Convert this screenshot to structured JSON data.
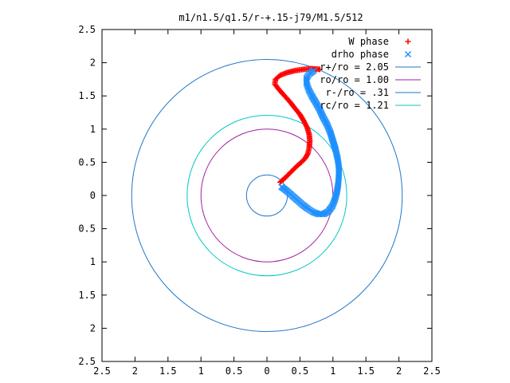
{
  "chart_data": {
    "type": "scatter",
    "title": "m1/n1.5/q1.5/r-+.15-j79/M1.5/512",
    "xlim": [
      -2.5,
      2.5
    ],
    "ylim": [
      -2.5,
      2.5
    ],
    "x_ticks": [
      "2.5",
      "2",
      "1.5",
      "1",
      "0.5",
      "0",
      "0.5",
      "1",
      "1.5",
      "2",
      "2.5"
    ],
    "y_ticks": [
      "2.5",
      "2",
      "1.5",
      "1",
      "0.5",
      "0",
      "0.5",
      "1",
      "1.5",
      "2",
      "2.5"
    ],
    "grid": false,
    "legend_position": "top-right",
    "series": [
      {
        "name": "W phase",
        "kind": "points",
        "marker": "plus",
        "color": "#ff0000",
        "points": [
          [
            0.2,
            0.2
          ],
          [
            0.28,
            0.27
          ],
          [
            0.36,
            0.35
          ],
          [
            0.44,
            0.43
          ],
          [
            0.52,
            0.5
          ],
          [
            0.58,
            0.56
          ],
          [
            0.62,
            0.63
          ],
          [
            0.64,
            0.72
          ],
          [
            0.65,
            0.82
          ],
          [
            0.64,
            0.92
          ],
          [
            0.61,
            1.02
          ],
          [
            0.56,
            1.12
          ],
          [
            0.5,
            1.22
          ],
          [
            0.42,
            1.32
          ],
          [
            0.34,
            1.42
          ],
          [
            0.25,
            1.52
          ],
          [
            0.17,
            1.61
          ],
          [
            0.12,
            1.68
          ],
          [
            0.13,
            1.75
          ],
          [
            0.2,
            1.81
          ],
          [
            0.3,
            1.85
          ],
          [
            0.42,
            1.88
          ],
          [
            0.55,
            1.9
          ],
          [
            0.68,
            1.91
          ],
          [
            0.8,
            1.9
          ]
        ]
      },
      {
        "name": "drho phase",
        "kind": "points",
        "marker": "cross",
        "color": "#1e90ff",
        "points": [
          [
            0.22,
            0.13
          ],
          [
            0.3,
            0.07
          ],
          [
            0.38,
            0.0
          ],
          [
            0.46,
            -0.07
          ],
          [
            0.54,
            -0.14
          ],
          [
            0.62,
            -0.2
          ],
          [
            0.7,
            -0.25
          ],
          [
            0.78,
            -0.28
          ],
          [
            0.86,
            -0.28
          ],
          [
            0.93,
            -0.24
          ],
          [
            0.99,
            -0.16
          ],
          [
            1.03,
            -0.06
          ],
          [
            1.06,
            0.05
          ],
          [
            1.08,
            0.17
          ],
          [
            1.09,
            0.3
          ],
          [
            1.09,
            0.43
          ],
          [
            1.07,
            0.56
          ],
          [
            1.04,
            0.69
          ],
          [
            1.0,
            0.82
          ],
          [
            0.96,
            0.95
          ],
          [
            0.91,
            1.07
          ],
          [
            0.85,
            1.18
          ],
          [
            0.8,
            1.29
          ],
          [
            0.74,
            1.4
          ],
          [
            0.68,
            1.5
          ],
          [
            0.63,
            1.6
          ],
          [
            0.6,
            1.69
          ],
          [
            0.6,
            1.77
          ],
          [
            0.64,
            1.83
          ],
          [
            0.71,
            1.88
          ]
        ]
      },
      {
        "name": "r+/ro = 2.05",
        "kind": "circle",
        "radius": 2.05,
        "color": "#1f77c8"
      },
      {
        "name": "ro/ro = 1.00",
        "kind": "circle",
        "radius": 1.0,
        "color": "#a020a0"
      },
      {
        "name": "r-/ro = .31",
        "kind": "circle",
        "radius": 0.31,
        "color": "#1f77c8"
      },
      {
        "name": "rc/ro = 1.21",
        "kind": "circle",
        "radius": 1.21,
        "color": "#00c8c8"
      }
    ]
  }
}
